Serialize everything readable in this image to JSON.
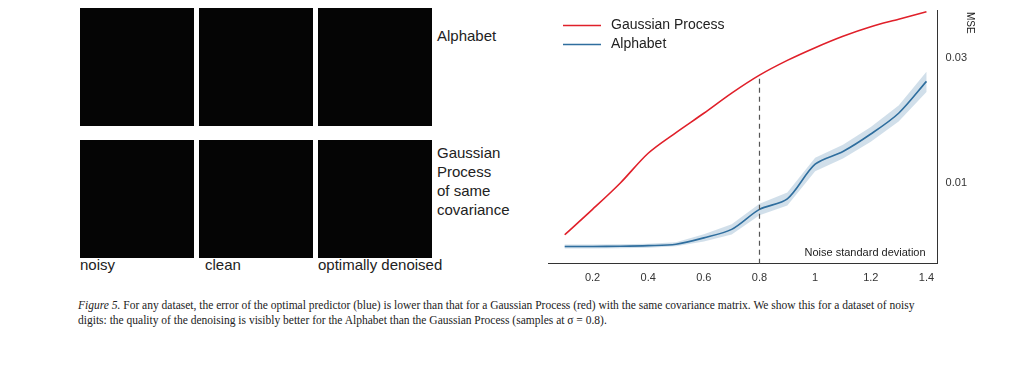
{
  "panel": {
    "row_labels": [
      [
        "Alphabet"
      ],
      [
        "Gaussian",
        "Process",
        "of same",
        "covariance"
      ]
    ],
    "column_labels": [
      "noisy",
      "clean",
      "optimally denoised"
    ]
  },
  "caption": {
    "label": "Figure 5.",
    "text": "For any dataset, the error of the optimal predictor (blue) is lower than that for a Gaussian Process (red) with the same covariance matrix. We show this for a dataset of noisy digits: the quality of the denoising is visibly better for the Alphabet than the Gaussian Process (samples at σ = 0.8)."
  },
  "chart_data": {
    "type": "line",
    "x": [
      0.1,
      0.2,
      0.3,
      0.4,
      0.5,
      0.6,
      0.7,
      0.8,
      0.9,
      1.0,
      1.1,
      1.2,
      1.3,
      1.4
    ],
    "series": [
      {
        "name": "Gaussian Process",
        "color": "#e0202a",
        "values": [
          0.00633,
          0.00792,
          0.01,
          0.013,
          0.0156,
          0.0185,
          0.0221,
          0.0259,
          0.0295,
          0.033,
          0.0365,
          0.0397,
          0.0424,
          0.0453
        ]
      },
      {
        "name": "Alphabet",
        "color": "#2f6e9e",
        "values": [
          0.00571,
          0.00571,
          0.00572,
          0.00575,
          0.00582,
          0.00616,
          0.00664,
          0.00792,
          0.00869,
          0.0118,
          0.0132,
          0.0154,
          0.0185,
          0.0245
        ],
        "error": [
          0.0001,
          0.0001,
          0.0001,
          0.0001,
          0.0001,
          0.0002,
          0.0003,
          0.0004,
          0.0005,
          0.0007,
          0.0008,
          0.001,
          0.0013,
          0.0022
        ]
      }
    ],
    "xlim": [
      0.04,
      1.44
    ],
    "xticks": [
      0.2,
      0.4,
      0.6,
      0.8,
      1.0,
      1.2,
      1.4
    ],
    "ylim": [
      0.0049,
      0.046
    ],
    "yticks": [
      0.01,
      0.03
    ],
    "log": "y",
    "grid": false,
    "legend": "upper left",
    "xlabel": "Noise standard deviation",
    "ylabel": "MSE",
    "reference_x": 0.8
  }
}
